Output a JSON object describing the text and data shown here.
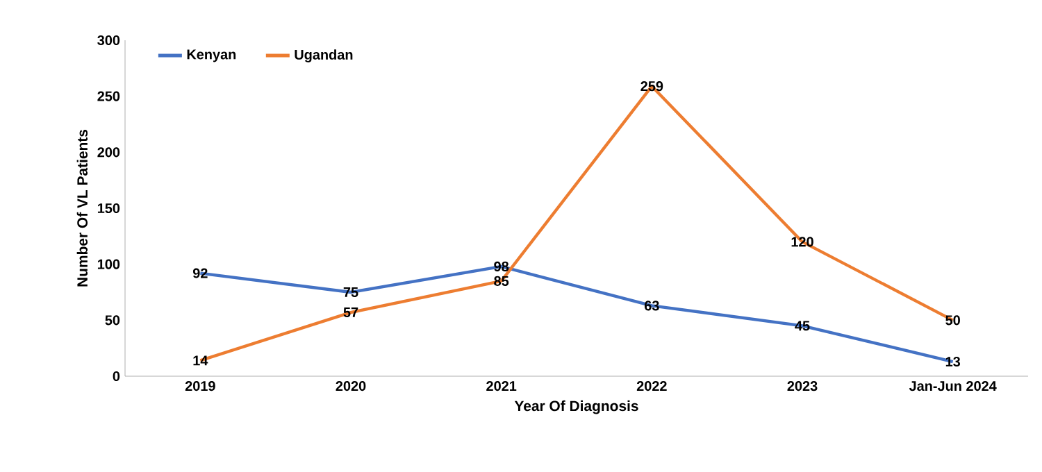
{
  "chart_data": {
    "type": "line",
    "xlabel": "Year Of Diagnosis",
    "ylabel": "Number Of VL Patients",
    "categories": [
      "2019",
      "2020",
      "2021",
      "2022",
      "2023",
      "Jan-Jun 2024"
    ],
    "series": [
      {
        "name": "Kenyan",
        "color": "#4472c4",
        "values": [
          92,
          75,
          98,
          63,
          45,
          13
        ]
      },
      {
        "name": "Ugandan",
        "color": "#ed7d31",
        "values": [
          14,
          57,
          85,
          259,
          120,
          50
        ]
      }
    ],
    "ylim": [
      0,
      300
    ],
    "yticks": [
      0,
      50,
      100,
      150,
      200,
      250,
      300
    ],
    "legend": "top left",
    "data_labels": true,
    "line_style": "solid"
  }
}
